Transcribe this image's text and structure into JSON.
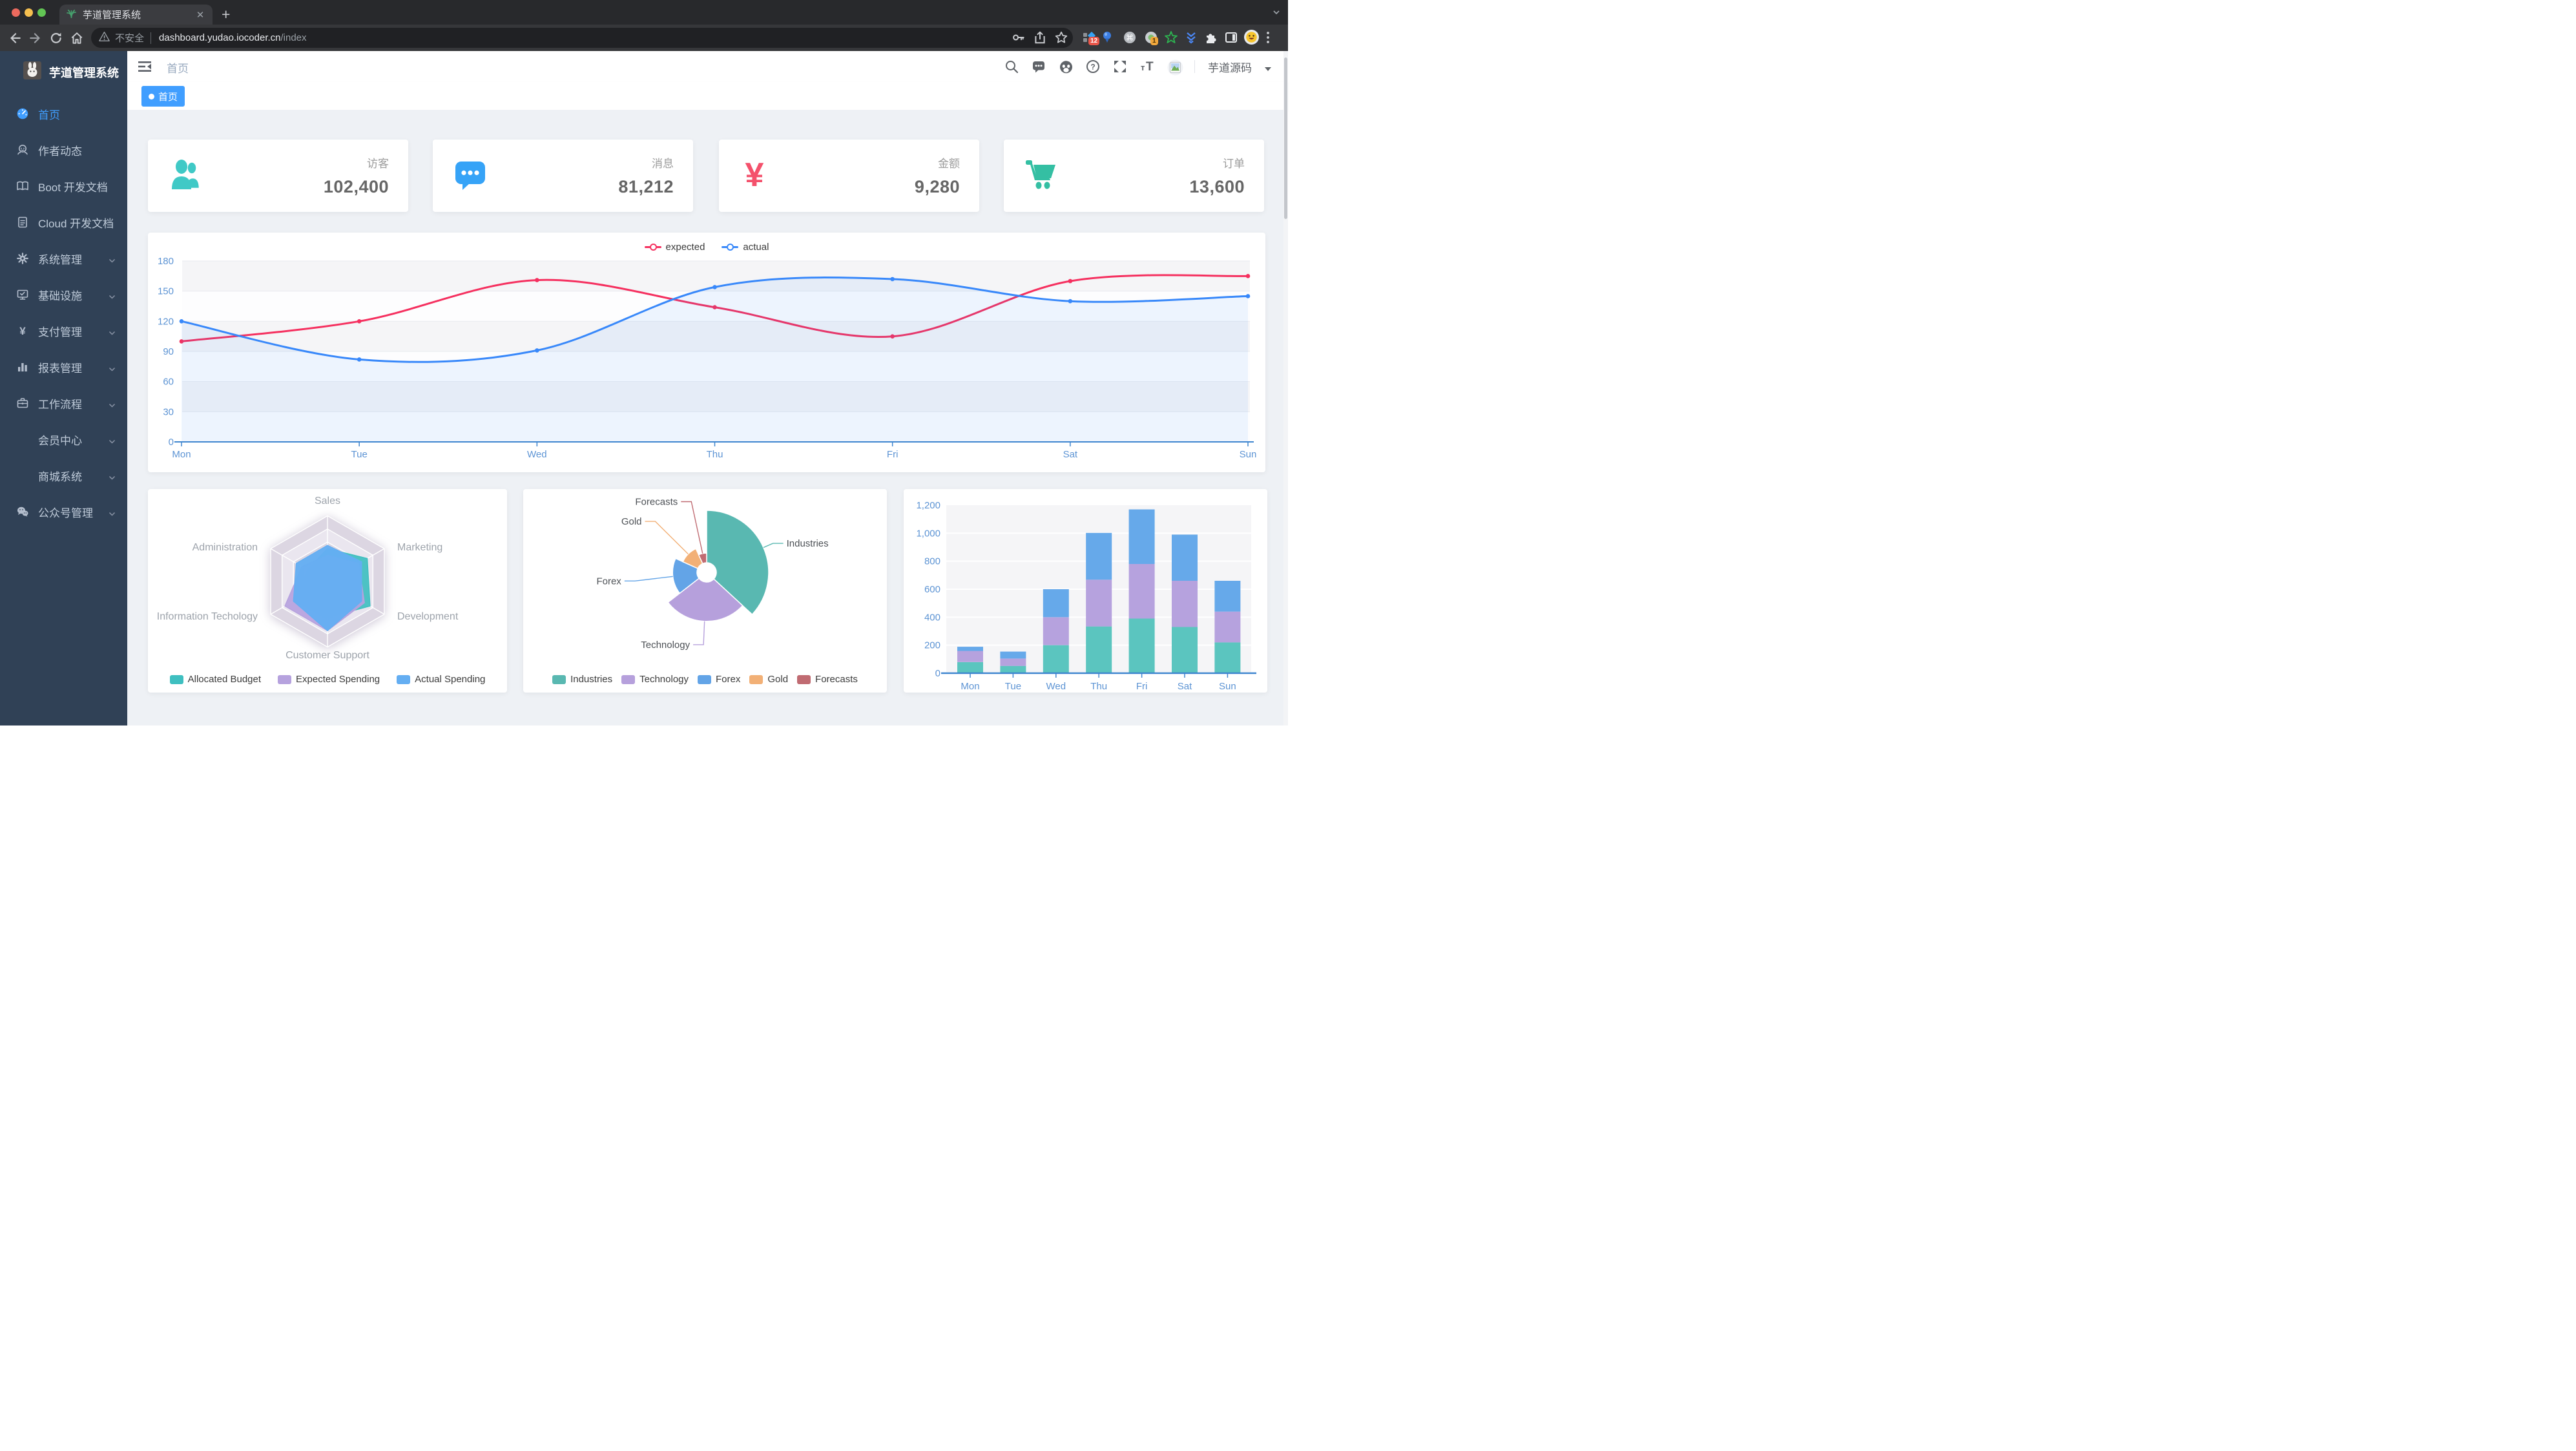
{
  "browser": {
    "tab_title": "芋道管理系统",
    "security_label": "不安全",
    "url_host": "dashboard.yudao.iocoder.cn",
    "url_path": "/index",
    "extensions": {
      "badge_red": "12",
      "badge_orange": "1"
    }
  },
  "sidebar": {
    "app_title": "芋道管理系统",
    "items": [
      {
        "label": "首页",
        "icon": "dashboard",
        "active": true,
        "arrow": false
      },
      {
        "label": "作者动态",
        "icon": "author",
        "active": false,
        "arrow": false
      },
      {
        "label": "Boot 开发文档",
        "icon": "book",
        "active": false,
        "arrow": false
      },
      {
        "label": "Cloud 开发文档",
        "icon": "doc",
        "active": false,
        "arrow": false
      },
      {
        "label": "系统管理",
        "icon": "gear",
        "active": false,
        "arrow": true
      },
      {
        "label": "基础设施",
        "icon": "infra",
        "active": false,
        "arrow": true
      },
      {
        "label": "支付管理",
        "icon": "pay",
        "active": false,
        "arrow": true
      },
      {
        "label": "报表管理",
        "icon": "report",
        "active": false,
        "arrow": true
      },
      {
        "label": "工作流程",
        "icon": "workflow",
        "active": false,
        "arrow": true
      },
      {
        "label": "会员中心",
        "icon": "none",
        "active": false,
        "arrow": true
      },
      {
        "label": "商城系统",
        "icon": "none",
        "active": false,
        "arrow": true
      },
      {
        "label": "公众号管理",
        "icon": "wechat",
        "active": false,
        "arrow": true
      }
    ]
  },
  "navbar": {
    "breadcrumb": "首页",
    "username": "芋道源码"
  },
  "tags": [
    {
      "label": "首页",
      "active": true
    }
  ],
  "stat_cards": [
    {
      "label": "访客",
      "value": "102,400",
      "icon": "peoples",
      "color": "#40c9c6"
    },
    {
      "label": "消息",
      "value": "81,212",
      "icon": "message",
      "color": "#36a3f7"
    },
    {
      "label": "金额",
      "value": "9,280",
      "icon": "money",
      "color": "#f4516c"
    },
    {
      "label": "订单",
      "value": "13,600",
      "icon": "shopping",
      "color": "#34bfa3"
    }
  ],
  "chart_data": [
    {
      "id": "line",
      "type": "line",
      "x": [
        "Mon",
        "Tue",
        "Wed",
        "Thu",
        "Fri",
        "Sat",
        "Sun"
      ],
      "series": [
        {
          "name": "expected",
          "color": "#f5305f",
          "values": [
            100,
            120,
            161,
            134,
            105,
            160,
            165
          ],
          "area": false
        },
        {
          "name": "actual",
          "color": "#3888fa",
          "values": [
            120,
            82,
            91,
            154,
            162,
            140,
            145
          ],
          "area": true
        }
      ],
      "ylim": [
        0,
        180
      ],
      "yticks": [
        0,
        30,
        60,
        90,
        120,
        150,
        180
      ],
      "legend_position": "top",
      "grid": "striped"
    },
    {
      "id": "radar",
      "type": "radar",
      "indicators": [
        {
          "name": "Sales",
          "max": 10000
        },
        {
          "name": "Administration",
          "max": 20000
        },
        {
          "name": "Information Techology",
          "max": 20000
        },
        {
          "name": "Customer Support",
          "max": 20000
        },
        {
          "name": "Development",
          "max": 20000
        },
        {
          "name": "Marketing",
          "max": 20000
        }
      ],
      "series": [
        {
          "name": "Allocated Budget",
          "color": "#3fbfc0",
          "values": [
            5000,
            7000,
            12000,
            11000,
            15000,
            14000
          ]
        },
        {
          "name": "Expected Spending",
          "color": "#b6a2de",
          "values": [
            4000,
            9000,
            15000,
            15000,
            13000,
            11000
          ]
        },
        {
          "name": "Actual Spending",
          "color": "#64aef2",
          "values": [
            5500,
            11000,
            12000,
            15000,
            12000,
            12000
          ]
        }
      ],
      "legend_position": "bottom"
    },
    {
      "id": "pie",
      "type": "pie",
      "rose": true,
      "slices": [
        {
          "name": "Industries",
          "value": 320,
          "color": "#59b8b1"
        },
        {
          "name": "Technology",
          "value": 240,
          "color": "#b6a0dc"
        },
        {
          "name": "Forex",
          "value": 149,
          "color": "#63a4e7"
        },
        {
          "name": "Gold",
          "value": 100,
          "color": "#f2b076"
        },
        {
          "name": "Forecasts",
          "value": 59,
          "color": "#c06b72"
        }
      ],
      "legend_position": "bottom"
    },
    {
      "id": "bar",
      "type": "bar",
      "stacked": true,
      "x": [
        "Mon",
        "Tue",
        "Wed",
        "Thu",
        "Fri",
        "Sat",
        "Sun"
      ],
      "series": [
        {
          "color": "#5bc5bf",
          "values": [
            79,
            52,
            200,
            334,
            390,
            330,
            220
          ]
        },
        {
          "color": "#b6a2de",
          "values": [
            80,
            52,
            200,
            334,
            390,
            330,
            220
          ]
        },
        {
          "color": "#66a9ea",
          "values": [
            30,
            50,
            200,
            334,
            390,
            330,
            220
          ]
        }
      ],
      "ylim": [
        0,
        1200
      ],
      "yticks": [
        0,
        200,
        400,
        600,
        800,
        1000,
        1200
      ],
      "ytick_labels": [
        "0",
        "200",
        "400",
        "600",
        "800",
        "1,000",
        "1,200"
      ],
      "grid": "gray"
    }
  ],
  "colors": {
    "accent": "#409eff",
    "sidebar_bg": "#304156",
    "sidebar_text": "#bfcbd9",
    "content_bg": "#eef1f5",
    "axis_label": "#5d94d4",
    "axis_line": "#3f86cf"
  }
}
